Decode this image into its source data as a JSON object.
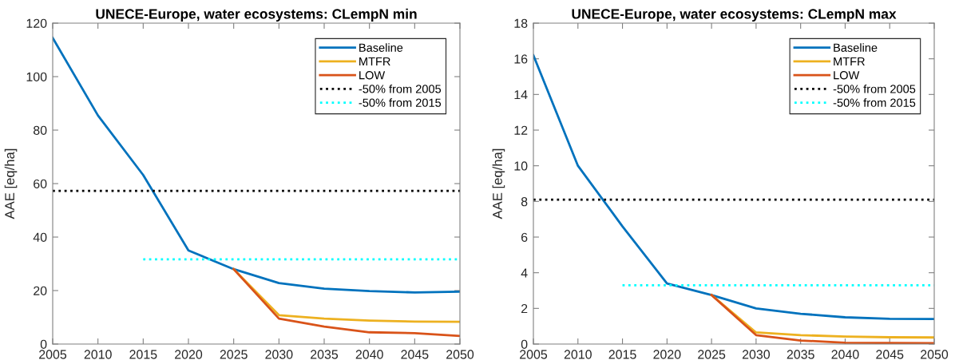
{
  "chart_data": [
    {
      "type": "line",
      "title": "UNECE-Europe, water ecosystems: CLempN min",
      "ylabel": "AAE [eq/ha]",
      "x": [
        2005,
        2010,
        2015,
        2020,
        2025,
        2030,
        2035,
        2040,
        2045,
        2050
      ],
      "xlim": [
        2005,
        2050
      ],
      "xticks": [
        2005,
        2010,
        2015,
        2020,
        2025,
        2030,
        2035,
        2040,
        2045,
        2050
      ],
      "ylim": [
        0,
        120
      ],
      "yticks": [
        0,
        20,
        40,
        60,
        80,
        100,
        120
      ],
      "legend": "top right",
      "series": [
        {
          "name": "Baseline",
          "color": "#0072bd",
          "line_style": "solid",
          "values": [
            114.5,
            85.5,
            63.2,
            35.0,
            28.0,
            22.8,
            20.7,
            19.8,
            19.3,
            19.6
          ]
        },
        {
          "name": "MTFR",
          "color": "#edb120",
          "line_style": "solid",
          "values": [
            null,
            null,
            null,
            null,
            28.0,
            10.8,
            9.5,
            8.8,
            8.4,
            8.3
          ]
        },
        {
          "name": "LOW",
          "color": "#d95319",
          "line_style": "solid",
          "values": [
            null,
            null,
            null,
            null,
            28.0,
            9.5,
            6.5,
            4.4,
            4.1,
            3.0
          ]
        },
        {
          "name": "-50% from 2005",
          "color": "#000000",
          "line_style": "dotted",
          "x": [
            2005,
            2050
          ],
          "values": [
            57.3,
            57.3
          ]
        },
        {
          "name": "-50% from 2015",
          "color": "#00ffff",
          "line_style": "dotted",
          "x": [
            2015,
            2050
          ],
          "values": [
            31.7,
            31.7
          ]
        }
      ]
    },
    {
      "type": "line",
      "title": "UNECE-Europe, water ecosystems: CLempN max",
      "ylabel": "AAE [eq/ha]",
      "x": [
        2005,
        2010,
        2015,
        2020,
        2025,
        2030,
        2035,
        2040,
        2045,
        2050
      ],
      "xlim": [
        2005,
        2050
      ],
      "xticks": [
        2005,
        2010,
        2015,
        2020,
        2025,
        2030,
        2035,
        2040,
        2045,
        2050
      ],
      "ylim": [
        0,
        18
      ],
      "yticks": [
        0,
        2,
        4,
        6,
        8,
        10,
        12,
        14,
        16,
        18
      ],
      "legend": "top right",
      "series": [
        {
          "name": "Baseline",
          "color": "#0072bd",
          "line_style": "solid",
          "values": [
            16.2,
            10.0,
            6.6,
            3.4,
            2.75,
            2.0,
            1.7,
            1.5,
            1.42,
            1.4
          ]
        },
        {
          "name": "MTFR",
          "color": "#edb120",
          "line_style": "solid",
          "values": [
            null,
            null,
            null,
            null,
            2.75,
            0.65,
            0.5,
            0.42,
            0.38,
            0.37
          ]
        },
        {
          "name": "LOW",
          "color": "#d95319",
          "line_style": "solid",
          "values": [
            null,
            null,
            null,
            null,
            2.75,
            0.5,
            0.2,
            0.07,
            0.06,
            0.05
          ]
        },
        {
          "name": "-50% from 2005",
          "color": "#000000",
          "line_style": "dotted",
          "x": [
            2005,
            2050
          ],
          "values": [
            8.1,
            8.1
          ]
        },
        {
          "name": "-50% from 2015",
          "color": "#00ffff",
          "line_style": "dotted",
          "x": [
            2015,
            2050
          ],
          "values": [
            3.3,
            3.3
          ]
        }
      ]
    }
  ]
}
